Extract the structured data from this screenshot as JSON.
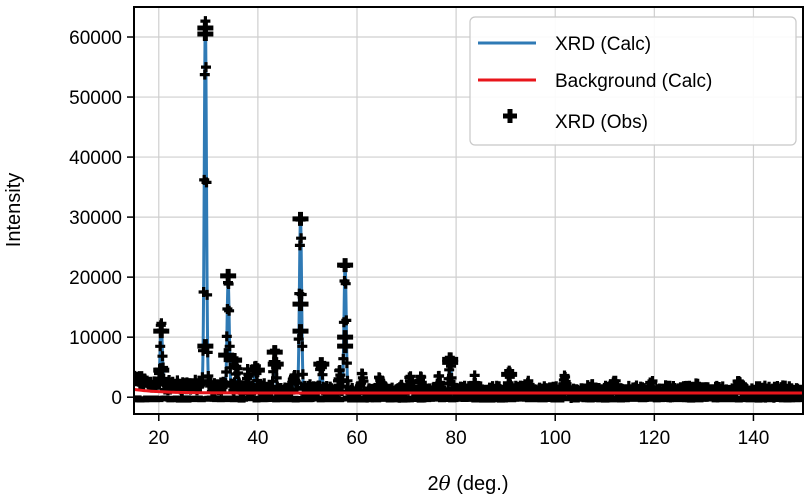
{
  "chart_data": {
    "type": "line",
    "title": "",
    "xlabel_prefix": "2",
    "xlabel_symbol": "θ",
    "xlabel_suffix": " (deg.)",
    "ylabel": "Intensity",
    "xlim": [
      15,
      150
    ],
    "ylim": [
      -2800,
      65000
    ],
    "xticks": [
      20,
      40,
      60,
      80,
      100,
      120,
      140
    ],
    "yticks": [
      0,
      10000,
      20000,
      30000,
      40000,
      50000,
      60000
    ],
    "grid": true,
    "legend_position": "top-right",
    "series": [
      {
        "name": "XRD (Calc)",
        "kind": "line",
        "color": "#2f7ab5"
      },
      {
        "name": "Background (Calc)",
        "kind": "line",
        "color": "#e8151b"
      },
      {
        "name": "XRD (Obs)",
        "kind": "marker",
        "marker": "plus",
        "color": "#000000"
      }
    ],
    "peaks": [
      {
        "x": 20.5,
        "y": 11000
      },
      {
        "x": 29.4,
        "y": 61500
      },
      {
        "x": 34.0,
        "y": 18500
      },
      {
        "x": 35.8,
        "y": 4500
      },
      {
        "x": 38.0,
        "y": 3500
      },
      {
        "x": 39.5,
        "y": 5000
      },
      {
        "x": 43.4,
        "y": 7500
      },
      {
        "x": 47.3,
        "y": 3500
      },
      {
        "x": 48.6,
        "y": 29700
      },
      {
        "x": 52.8,
        "y": 5500
      },
      {
        "x": 56.5,
        "y": 3500
      },
      {
        "x": 57.6,
        "y": 22000
      },
      {
        "x": 61.0,
        "y": 3500
      },
      {
        "x": 64.6,
        "y": 3000
      },
      {
        "x": 70.8,
        "y": 3200
      },
      {
        "x": 72.9,
        "y": 3000
      },
      {
        "x": 76.5,
        "y": 2800
      },
      {
        "x": 78.8,
        "y": 6300
      },
      {
        "x": 83.8,
        "y": 2500
      },
      {
        "x": 90.7,
        "y": 3200
      },
      {
        "x": 94.6,
        "y": 2400
      },
      {
        "x": 102.0,
        "y": 2600
      },
      {
        "x": 107.3,
        "y": 2200
      },
      {
        "x": 112.0,
        "y": 2000
      },
      {
        "x": 119.4,
        "y": 2200
      },
      {
        "x": 128.5,
        "y": 1800
      },
      {
        "x": 137.1,
        "y": 2500
      }
    ],
    "background_level": 700,
    "obs_markers": [
      {
        "x": 20.5,
        "y": 11000
      },
      {
        "x": 20.5,
        "y": 4500
      },
      {
        "x": 29.4,
        "y": 61500
      },
      {
        "x": 29.4,
        "y": 60500
      },
      {
        "x": 29.4,
        "y": 8500
      },
      {
        "x": 34.0,
        "y": 20200
      },
      {
        "x": 33.6,
        "y": 7000
      },
      {
        "x": 35.2,
        "y": 6200
      },
      {
        "x": 39.8,
        "y": 4500
      },
      {
        "x": 43.4,
        "y": 7500
      },
      {
        "x": 43.6,
        "y": 5500
      },
      {
        "x": 48.6,
        "y": 29700
      },
      {
        "x": 48.6,
        "y": 15500
      },
      {
        "x": 48.6,
        "y": 11000
      },
      {
        "x": 52.8,
        "y": 5500
      },
      {
        "x": 57.6,
        "y": 22000
      },
      {
        "x": 57.6,
        "y": 10000
      },
      {
        "x": 57.6,
        "y": 8500
      },
      {
        "x": 78.8,
        "y": 6300
      },
      {
        "x": 78.8,
        "y": 5800
      },
      {
        "x": 90.7,
        "y": 3800
      }
    ]
  }
}
